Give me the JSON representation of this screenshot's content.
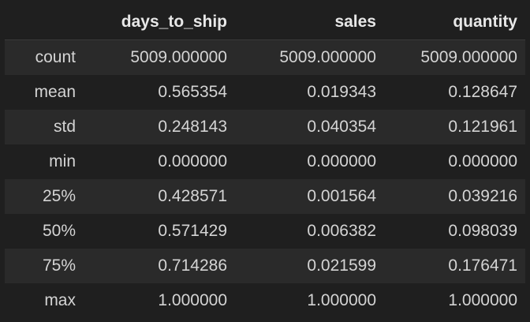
{
  "table": {
    "corner": "",
    "columns": [
      "days_to_ship",
      "sales",
      "quantity"
    ],
    "rows": [
      {
        "label": "count",
        "values": [
          "5009.000000",
          "5009.000000",
          "5009.000000"
        ]
      },
      {
        "label": "mean",
        "values": [
          "0.565354",
          "0.019343",
          "0.128647"
        ]
      },
      {
        "label": "std",
        "values": [
          "0.248143",
          "0.040354",
          "0.121961"
        ]
      },
      {
        "label": "min",
        "values": [
          "0.000000",
          "0.000000",
          "0.000000"
        ]
      },
      {
        "label": "25%",
        "values": [
          "0.428571",
          "0.001564",
          "0.039216"
        ]
      },
      {
        "label": "50%",
        "values": [
          "0.571429",
          "0.006382",
          "0.098039"
        ]
      },
      {
        "label": "75%",
        "values": [
          "0.714286",
          "0.021599",
          "0.176471"
        ]
      },
      {
        "label": "max",
        "values": [
          "1.000000",
          "1.000000",
          "1.000000"
        ]
      }
    ]
  }
}
